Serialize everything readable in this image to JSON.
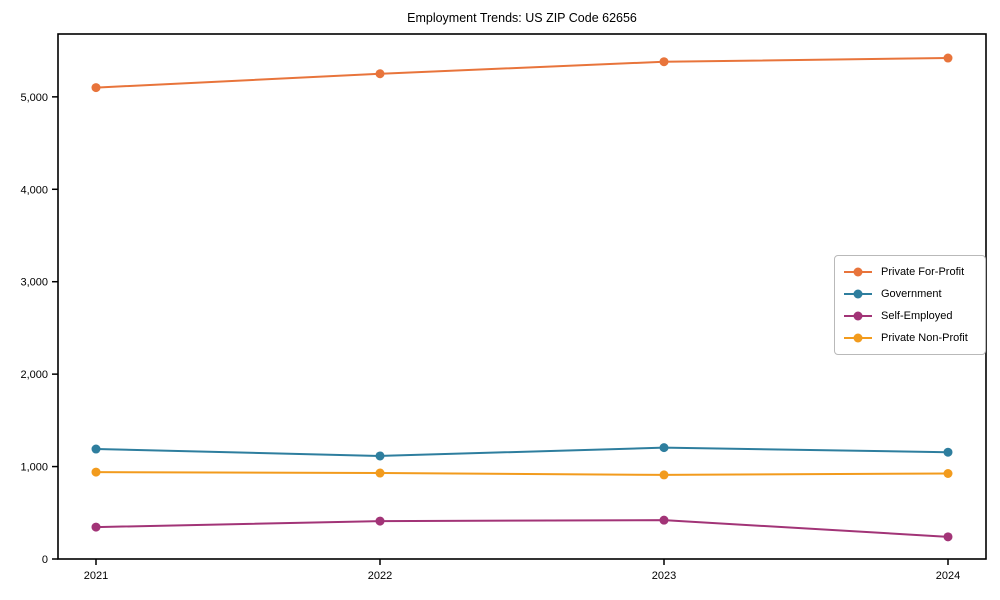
{
  "chart_data": {
    "type": "line",
    "title": "Employment Trends: US ZIP Code 62656",
    "xlabel": "",
    "ylabel": "",
    "x_tick_labels": [
      "2021",
      "2022",
      "2023",
      "2024"
    ],
    "series": [
      {
        "name": "Private For-Profit",
        "color": "#e8743b",
        "values": [
          5100,
          5250,
          5380,
          5420
        ]
      },
      {
        "name": "Government",
        "color": "#2e7e9e",
        "values": [
          1190,
          1115,
          1205,
          1155
        ]
      },
      {
        "name": "Self-Employed",
        "color": "#a23477",
        "values": [
          345,
          410,
          420,
          240
        ]
      },
      {
        "name": "Private Non-Profit",
        "color": "#f29b1d",
        "values": [
          940,
          930,
          910,
          925
        ]
      }
    ],
    "ylim": [
      0,
      5680
    ],
    "yticks": [
      0,
      1000,
      2000,
      3000,
      4000,
      5000
    ],
    "ytick_labels": [
      "0",
      "1,000",
      "2,000",
      "3,000",
      "4,000",
      "5,000"
    ],
    "grid": false,
    "legend_position": "center-right",
    "marker": "circle",
    "axis_color": "#000000",
    "background_color": "#ffffff"
  }
}
